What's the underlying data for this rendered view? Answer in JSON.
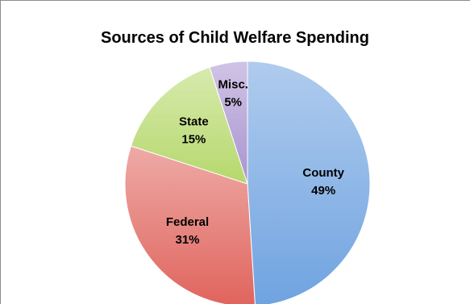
{
  "chart_data": {
    "type": "pie",
    "title": "Sources of Child Welfare Spending",
    "categories": [
      "County",
      "Federal",
      "State",
      "Misc."
    ],
    "values": [
      49,
      31,
      15,
      5
    ],
    "value_labels": [
      "49%",
      "31%",
      "15%",
      "5%"
    ],
    "colors": [
      "#6fa3e0",
      "#e0645d",
      "#b6d86c",
      "#a993cf"
    ],
    "legend": "none"
  }
}
